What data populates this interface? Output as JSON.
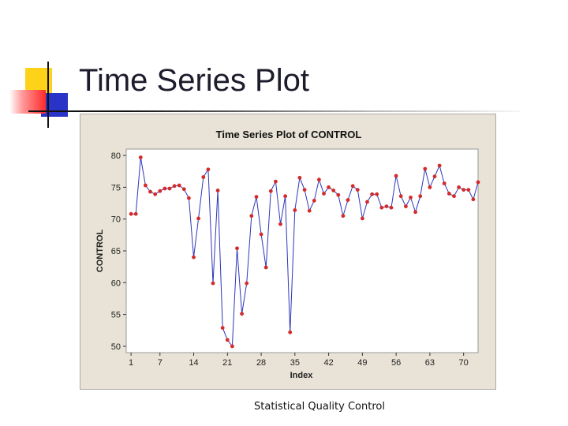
{
  "slide": {
    "title": "Time Series Plot",
    "footer": "Statistical Quality Control"
  },
  "colors": {
    "line": "#2e36b8",
    "marker": "#d42a2a",
    "plot_background": "#ffffff",
    "frame_background": "#e8e3d6"
  },
  "chart_data": {
    "type": "line",
    "title": "Time Series Plot of CONTROL",
    "xlabel": "Index",
    "ylabel": "CONTROL",
    "xlim": [
      0,
      73
    ],
    "ylim": [
      49,
      81
    ],
    "x_ticks": [
      1,
      7,
      14,
      21,
      28,
      35,
      42,
      49,
      56,
      63,
      70
    ],
    "y_ticks": [
      50,
      55,
      60,
      65,
      70,
      75,
      80
    ],
    "grid": false,
    "legend": "none",
    "marker": "circle",
    "x": [
      1,
      2,
      3,
      4,
      5,
      6,
      7,
      8,
      9,
      10,
      11,
      12,
      13,
      14,
      15,
      16,
      17,
      18,
      19,
      20,
      21,
      22,
      23,
      24,
      25,
      26,
      27,
      28,
      29,
      30,
      31,
      32,
      33,
      34,
      35,
      36,
      37,
      38,
      39,
      40,
      41,
      42,
      43,
      44,
      45,
      46,
      47,
      48,
      49,
      50,
      51,
      52,
      53,
      54,
      55,
      56,
      57,
      58,
      59,
      60,
      61,
      62,
      63,
      64,
      65,
      66,
      67,
      68,
      69,
      70,
      71,
      72,
      73
    ],
    "values": [
      70.8,
      70.8,
      79.7,
      75.3,
      74.3,
      73.9,
      74.4,
      74.8,
      74.8,
      75.2,
      75.3,
      74.7,
      73.3,
      64.0,
      70.1,
      76.6,
      77.8,
      59.9,
      74.5,
      52.9,
      51.0,
      50.0,
      65.4,
      55.1,
      59.9,
      70.5,
      73.5,
      67.6,
      62.4,
      74.4,
      75.9,
      69.2,
      73.6,
      52.2,
      71.4,
      76.5,
      74.6,
      71.3,
      72.9,
      76.2,
      74.0,
      75.0,
      74.5,
      73.8,
      70.5,
      73.0,
      75.2,
      74.6,
      70.1,
      72.7,
      73.9,
      73.9,
      71.8,
      72.0,
      71.8,
      76.8,
      73.6,
      72.0,
      73.4,
      71.1,
      73.6,
      77.9,
      75.0,
      76.7,
      78.4,
      75.6,
      74.0,
      73.6,
      75.0,
      74.6,
      74.6,
      73.1,
      75.8
    ]
  }
}
